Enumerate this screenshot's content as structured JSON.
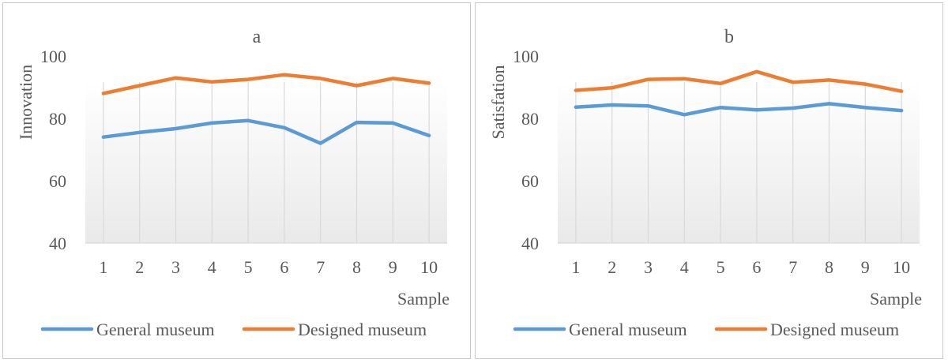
{
  "chart_data": [
    {
      "type": "line",
      "title": "a",
      "ylabel": "Innovation",
      "xlabel": "Sample",
      "categories": [
        "1",
        "2",
        "3",
        "4",
        "5",
        "6",
        "7",
        "8",
        "9",
        "10"
      ],
      "ylim": [
        40,
        100
      ],
      "yticks": [
        "40",
        "60",
        "80",
        "100"
      ],
      "grid": "vertical",
      "legend": "bottom",
      "series": [
        {
          "name": "General museum",
          "color": "#5b9bd5",
          "values": [
            74,
            75.5,
            76.7,
            78.5,
            79.3,
            77,
            72,
            78.7,
            78.5,
            74.5
          ]
        },
        {
          "name": "Designed museum",
          "color": "#ed7d31",
          "values": [
            88,
            90.5,
            93,
            91.7,
            92.5,
            94,
            92.8,
            90.5,
            92.8,
            91.3
          ]
        }
      ]
    },
    {
      "type": "line",
      "title": "b",
      "ylabel": "Satisfation",
      "xlabel": "Sample",
      "categories": [
        "1",
        "2",
        "3",
        "4",
        "5",
        "6",
        "7",
        "8",
        "9",
        "10"
      ],
      "ylim": [
        40,
        100
      ],
      "yticks": [
        "40",
        "60",
        "80",
        "100"
      ],
      "grid": "vertical",
      "legend": "bottom",
      "series": [
        {
          "name": "General museum",
          "color": "#5b9bd5",
          "values": [
            83.6,
            84.3,
            84,
            81.2,
            83.5,
            82.7,
            83.3,
            84.7,
            83.5,
            82.5
          ]
        },
        {
          "name": "Designed museum",
          "color": "#ed7d31",
          "values": [
            89,
            89.8,
            92.5,
            92.7,
            91.2,
            95,
            91.6,
            92.3,
            91,
            88.7
          ]
        }
      ]
    }
  ]
}
